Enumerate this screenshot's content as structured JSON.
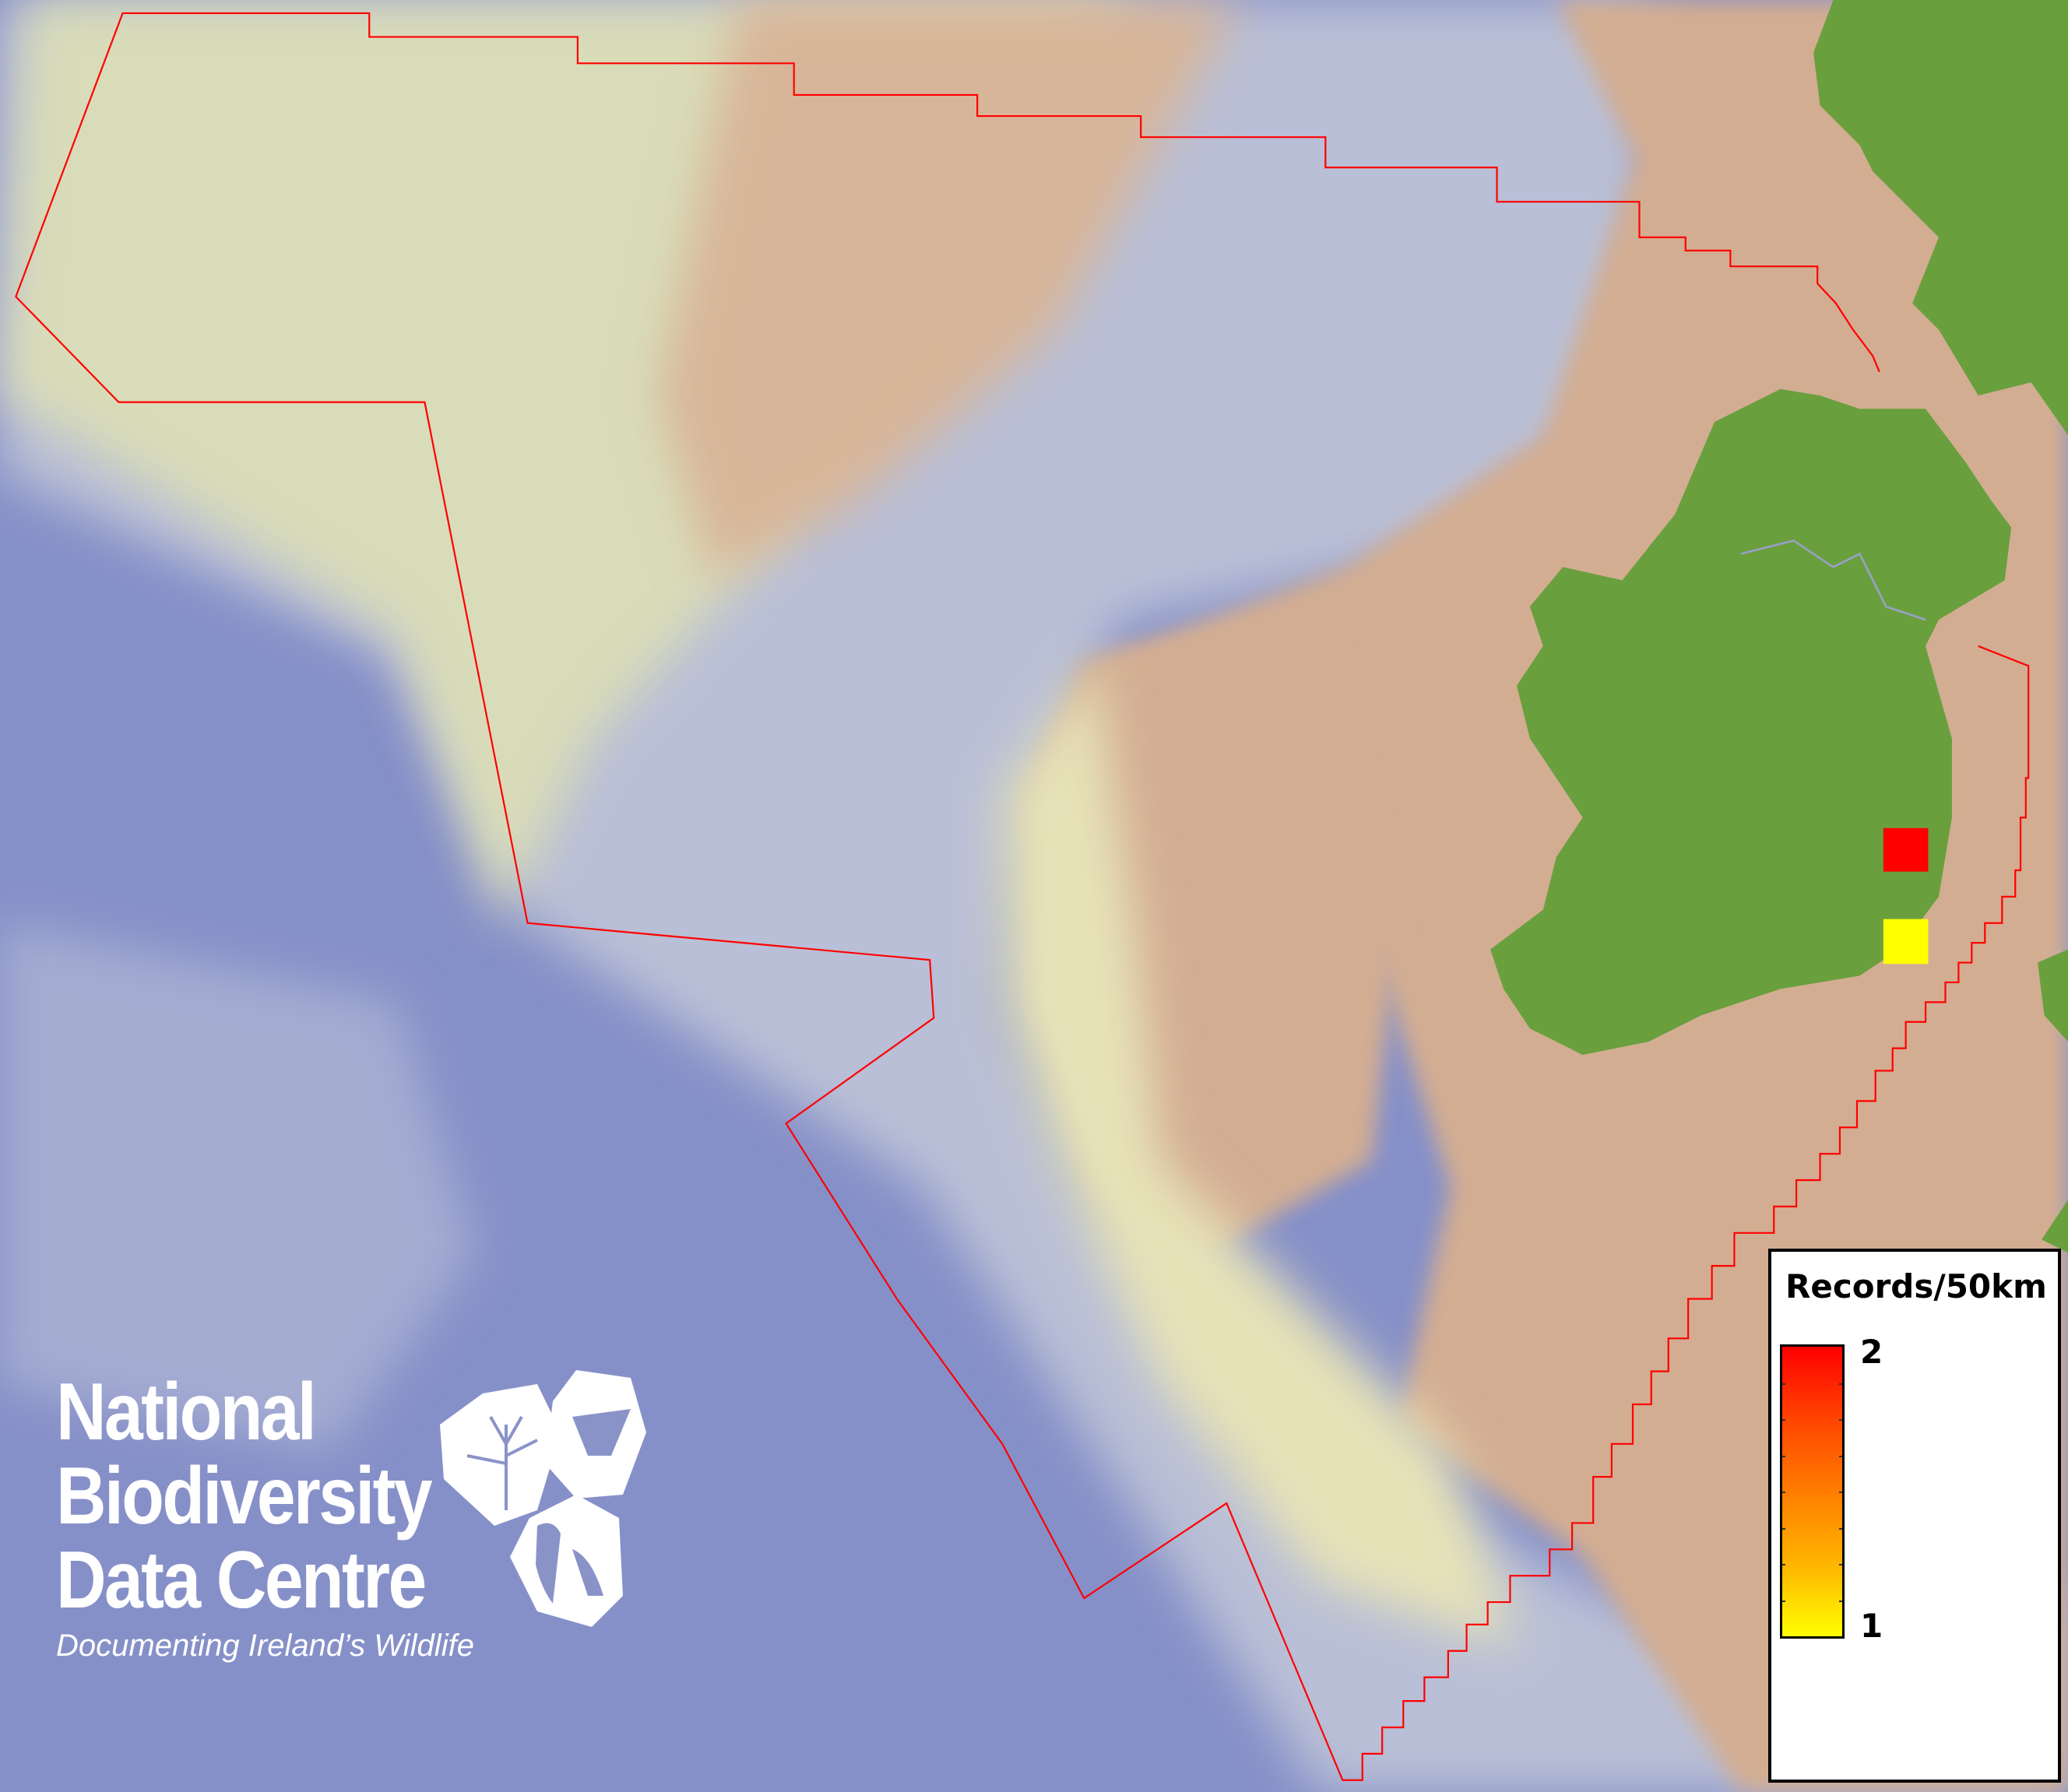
{
  "legend": {
    "title": "Records/50km",
    "max_label": "2",
    "min_label": "1",
    "ramp_colors": [
      "#ff0000",
      "#ffff00"
    ]
  },
  "records": [
    {
      "value": 2,
      "color": "#ff0000"
    },
    {
      "value": 1,
      "color": "#ffff00"
    }
  ],
  "boundary_color": "#ff0000",
  "land_color": "#6a9f3e",
  "sea_color": "#8690c8",
  "logo": {
    "line1": "National",
    "line2": "Biodiversity",
    "line3": "Data Centre",
    "tagline": "Documenting Ireland’s Wildlife"
  }
}
